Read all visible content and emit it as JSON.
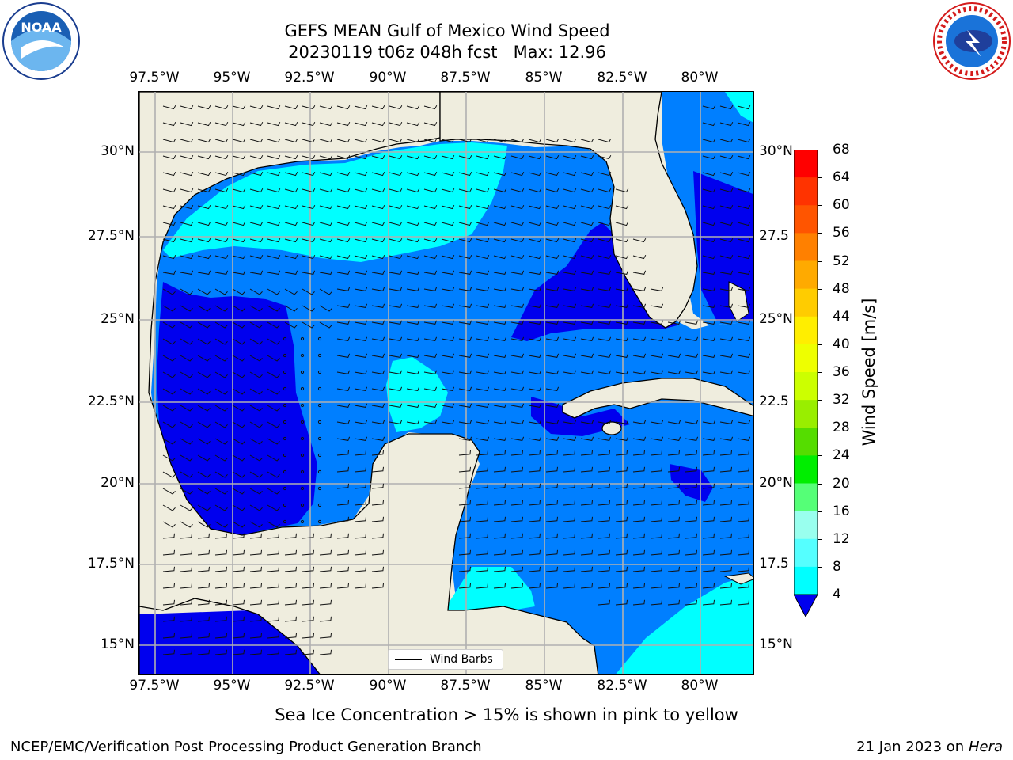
{
  "header": {
    "title_line1": "GEFS MEAN Gulf of Mexico Wind Speed",
    "title_line2": "20230119 t06z 048h fcst   Max: 12.96"
  },
  "axes": {
    "lon_labels": [
      "97.5°W",
      "95°W",
      "92.5°W",
      "90°W",
      "87.5°W",
      "85°W",
      "82.5°W",
      "80°W"
    ],
    "lat_labels_left": [
      "30°N",
      "27.5°N",
      "25°N",
      "22.5°N",
      "20°N",
      "17.5°N",
      "15°N"
    ],
    "lat_labels_right": [
      "30°N",
      "27.5",
      "25°N",
      "22.5",
      "20°N",
      "17.5",
      "15°N"
    ]
  },
  "legend": {
    "wind_barbs_label": "Wind Barbs"
  },
  "colorbar": {
    "label": "Wind Speed [m/s]",
    "ticks": [
      "68",
      "64",
      "60",
      "56",
      "52",
      "48",
      "44",
      "40",
      "36",
      "32",
      "28",
      "24",
      "20",
      "16",
      "12",
      "8",
      "4"
    ],
    "colors": [
      "#ff0000",
      "#ff3300",
      "#ff5500",
      "#ff8000",
      "#ffaa00",
      "#ffcc00",
      "#ffee00",
      "#eeff00",
      "#ccff00",
      "#99ee00",
      "#55dd00",
      "#00ee00",
      "#55ff77",
      "#99ffee",
      "#55ffff",
      "#00ffff",
      "#007fff"
    ],
    "under_color": "#0000ee"
  },
  "footer": {
    "sea_ice_note": "Sea Ice Concentration > 15% is shown in pink to yellow",
    "credit_left": "NCEP/EMC/Verification Post Processing Product Generation Branch",
    "credit_date": "21 Jan 2023 on ",
    "credit_machine": "Hera"
  },
  "map_colors": {
    "land": "#efedde",
    "speed_4_8": "#007fff",
    "speed_8_12": "#00ffff",
    "speed_12_16": "#55ffff",
    "speed_below_4": "#0000ee"
  },
  "logos": {
    "left": "noaa-logo",
    "right": "national-weather-service-logo"
  }
}
